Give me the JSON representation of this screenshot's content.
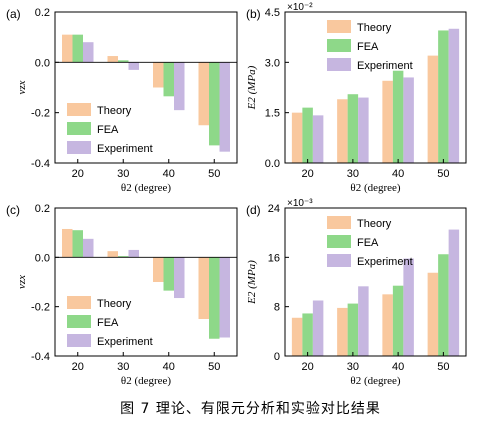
{
  "caption": "图 7  理论、有限元分析和实验对比结果",
  "colors": {
    "theory": "#F9C89E",
    "fea": "#8ED889",
    "experiment": "#C6B6E0"
  },
  "chart_data": [
    {
      "panel": "(a)",
      "type": "bar",
      "categories": [
        "20",
        "30",
        "40",
        "50"
      ],
      "xlabel": "θ2 (degree)",
      "ylabel": "νzx",
      "ylim": [
        -0.4,
        0.2
      ],
      "yticks": [
        "0.2",
        "0.0",
        "-0.2",
        "-0.4"
      ],
      "multiplier": "",
      "legend": "bottom-left",
      "series": [
        {
          "name": "Theory",
          "values": [
            0.11,
            0.025,
            -0.1,
            -0.25
          ]
        },
        {
          "name": "FEA",
          "values": [
            0.11,
            0.008,
            -0.135,
            -0.33
          ]
        },
        {
          "name": "Experiment",
          "values": [
            0.08,
            -0.03,
            -0.19,
            -0.355
          ]
        }
      ]
    },
    {
      "panel": "(b)",
      "type": "bar",
      "categories": [
        "20",
        "30",
        "40",
        "50"
      ],
      "xlabel": "θ2 (degree)",
      "ylabel": "E2 (MPa)",
      "ylim": [
        0,
        4.5
      ],
      "yticks": [
        "4.5",
        "3.0",
        "1.5",
        "0.0"
      ],
      "multiplier": "×10⁻²",
      "legend": "top-left",
      "series": [
        {
          "name": "Theory",
          "values": [
            1.5,
            1.9,
            2.45,
            3.2
          ]
        },
        {
          "name": "FEA",
          "values": [
            1.65,
            2.05,
            2.75,
            3.95
          ]
        },
        {
          "name": "Experiment",
          "values": [
            1.42,
            1.95,
            2.55,
            4.0
          ]
        }
      ]
    },
    {
      "panel": "(c)",
      "type": "bar",
      "categories": [
        "20",
        "30",
        "40",
        "50"
      ],
      "xlabel": "θ2 (degree)",
      "ylabel": "νzx",
      "ylim": [
        -0.4,
        0.2
      ],
      "yticks": [
        "0.2",
        "0.0",
        "-0.2",
        "-0.4"
      ],
      "multiplier": "",
      "legend": "bottom-left",
      "series": [
        {
          "name": "Theory",
          "values": [
            0.115,
            0.025,
            -0.1,
            -0.25
          ]
        },
        {
          "name": "FEA",
          "values": [
            0.11,
            0.005,
            -0.135,
            -0.33
          ]
        },
        {
          "name": "Experiment",
          "values": [
            0.075,
            0.03,
            -0.165,
            -0.325
          ]
        }
      ]
    },
    {
      "panel": "(d)",
      "type": "bar",
      "categories": [
        "20",
        "30",
        "40",
        "50"
      ],
      "xlabel": "θ2 (degree)",
      "ylabel": "E2 (MPa)",
      "ylim": [
        0,
        24
      ],
      "yticks": [
        "24",
        "16",
        "8",
        "0"
      ],
      "multiplier": "×10⁻³",
      "legend": "top-left",
      "series": [
        {
          "name": "Theory",
          "values": [
            6.2,
            7.8,
            10.0,
            13.5
          ]
        },
        {
          "name": "FEA",
          "values": [
            6.9,
            8.5,
            11.4,
            16.5
          ]
        },
        {
          "name": "Experiment",
          "values": [
            9.0,
            11.3,
            15.8,
            20.5
          ]
        }
      ]
    }
  ]
}
